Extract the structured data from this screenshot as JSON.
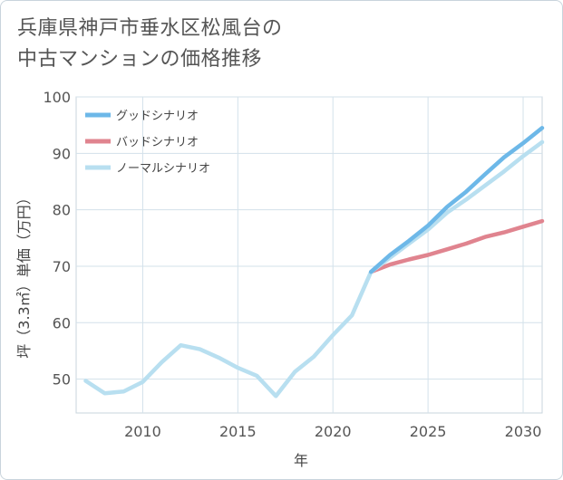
{
  "title_lines": [
    "兵庫県神戸市垂水区松風台の",
    "中古マンションの価格推移"
  ],
  "chart_data": {
    "type": "line",
    "title": "兵庫県神戸市垂水区松風台の中古マンションの価格推移",
    "xlabel": "年",
    "ylabel": "坪（3.3㎡）単価（万円）",
    "xlim": [
      2006.5,
      2031
    ],
    "ylim": [
      44,
      100
    ],
    "xticks": [
      2010,
      2015,
      2020,
      2025,
      2030
    ],
    "yticks": [
      50,
      60,
      70,
      80,
      90,
      100
    ],
    "grid": true,
    "legend_position": "top-left",
    "series": [
      {
        "name": "グッドシナリオ",
        "color": "#6db8e8",
        "x": [
          2022,
          2023,
          2024,
          2025,
          2026,
          2027,
          2028,
          2029,
          2030,
          2031
        ],
        "y": [
          69.0,
          72.0,
          74.5,
          77.2,
          80.5,
          83.2,
          86.3,
          89.3,
          91.8,
          94.5
        ]
      },
      {
        "name": "バッドシナリオ",
        "color": "#e0848f",
        "x": [
          2022,
          2023,
          2024,
          2025,
          2026,
          2027,
          2028,
          2029,
          2030,
          2031
        ],
        "y": [
          69.0,
          70.3,
          71.2,
          72.0,
          73.0,
          74.0,
          75.2,
          76.0,
          77.0,
          78.0
        ]
      },
      {
        "name": "ノーマルシナリオ",
        "color": "#b8dff0",
        "x": [
          2007,
          2008,
          2009,
          2010,
          2011,
          2012,
          2013,
          2014,
          2015,
          2016,
          2017,
          2018,
          2019,
          2020,
          2021,
          2022,
          2023,
          2024,
          2025,
          2026,
          2027,
          2028,
          2029,
          2030,
          2031
        ],
        "y": [
          49.7,
          47.5,
          47.8,
          49.5,
          53.0,
          56.0,
          55.3,
          53.8,
          52.0,
          50.6,
          47.0,
          51.3,
          54.0,
          57.8,
          61.3,
          69.0,
          71.5,
          74.0,
          76.5,
          79.5,
          81.8,
          84.3,
          86.8,
          89.5,
          92.0
        ]
      }
    ]
  }
}
